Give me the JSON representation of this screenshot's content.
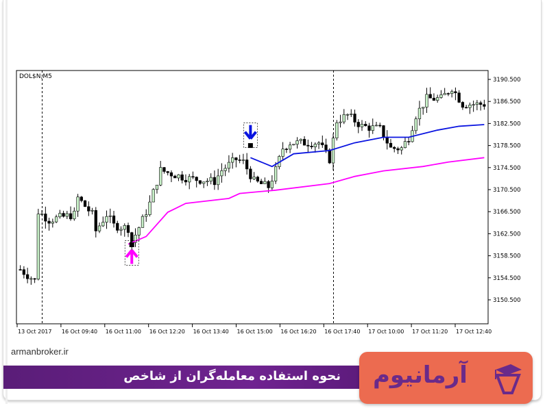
{
  "chart_data": {
    "type": "candlestick",
    "symbol_label": "DOL$N,M5",
    "y_ticks": [
      "3190.500",
      "3186.500",
      "3182.500",
      "3178.500",
      "3174.500",
      "3170.500",
      "3166.500",
      "3162.500",
      "3158.500",
      "3154.500",
      "3150.500"
    ],
    "ylim": [
      3145.5,
      3192.2
    ],
    "x_ticks": [
      "13 Oct 2017",
      "16 Oct 09:40",
      "16 Oct 11:00",
      "16 Oct 12:20",
      "16 Oct 13:40",
      "16 Oct 15:00",
      "16 Oct 16:20",
      "16 Oct 17:40",
      "17 Oct 10:00",
      "17 Oct 11:20",
      "17 Oct 12:40"
    ],
    "bar_count": 130,
    "close_keypoints": [
      [
        0,
        3156
      ],
      [
        4,
        3154
      ],
      [
        5,
        3166.5
      ],
      [
        8,
        3165
      ],
      [
        15,
        3166
      ],
      [
        16,
        3169
      ],
      [
        20,
        3166
      ],
      [
        21,
        3163
      ],
      [
        24,
        3166
      ],
      [
        26,
        3164
      ],
      [
        30,
        3163.5
      ],
      [
        31,
        3161
      ],
      [
        34,
        3165
      ],
      [
        36,
        3168
      ],
      [
        39,
        3174
      ],
      [
        44,
        3173
      ],
      [
        47,
        3172.5
      ],
      [
        54,
        3172
      ],
      [
        56,
        3174
      ],
      [
        58,
        3175
      ],
      [
        60,
        3176
      ],
      [
        62,
        3175.5
      ],
      [
        65,
        3172
      ],
      [
        69,
        3171
      ],
      [
        71,
        3174
      ],
      [
        73,
        3178
      ],
      [
        75,
        3179
      ],
      [
        83,
        3179
      ],
      [
        86,
        3176
      ],
      [
        88,
        3183
      ],
      [
        91,
        3184
      ],
      [
        95,
        3182
      ],
      [
        100,
        3181.5
      ],
      [
        103,
        3178
      ],
      [
        106,
        3178
      ],
      [
        108,
        3180
      ],
      [
        110,
        3184
      ],
      [
        113,
        3187
      ],
      [
        117,
        3187
      ],
      [
        120,
        3189
      ],
      [
        123,
        3186
      ],
      [
        129,
        3186
      ]
    ],
    "series": [
      {
        "color": "#0a14e0",
        "points": [
          [
            64,
            3176.3
          ],
          [
            70,
            3174.7
          ],
          [
            76,
            3177
          ],
          [
            86,
            3177.6
          ],
          [
            93,
            3179
          ],
          [
            101,
            3180
          ],
          [
            108,
            3180
          ],
          [
            116,
            3181.3
          ],
          [
            122,
            3182
          ],
          [
            129,
            3182.3
          ]
        ]
      },
      {
        "color": "#ff00ff",
        "points": [
          [
            30,
            3160.6
          ],
          [
            35,
            3162
          ],
          [
            41,
            3166.4
          ],
          [
            46,
            3168
          ],
          [
            58,
            3168.9
          ],
          [
            61,
            3169.8
          ],
          [
            71,
            3170.4
          ],
          [
            86,
            3171.6
          ],
          [
            93,
            3172.9
          ],
          [
            101,
            3173.9
          ],
          [
            112,
            3174.7
          ],
          [
            119,
            3175.5
          ],
          [
            129,
            3176.3
          ]
        ]
      }
    ],
    "signals": [
      {
        "type": "buy",
        "bar": 31,
        "price": 3160.5,
        "color": "#ff00ff"
      },
      {
        "type": "sell",
        "bar": 64,
        "price": 3178.5,
        "color": "#0a14e0"
      }
    ],
    "vlines_bars": [
      6,
      87
    ],
    "up_color": "#c8f0c8",
    "down_color": "#000000"
  },
  "footer": {
    "site": "armanbroker.ir",
    "title": "نحوه استفاده معامله‌گران از شاخص",
    "logo": "آرمانیوم"
  },
  "colors": {
    "band": "#6b1f86",
    "logo_bg": "#ec6b50",
    "logo_text": "#6a2a8a"
  }
}
